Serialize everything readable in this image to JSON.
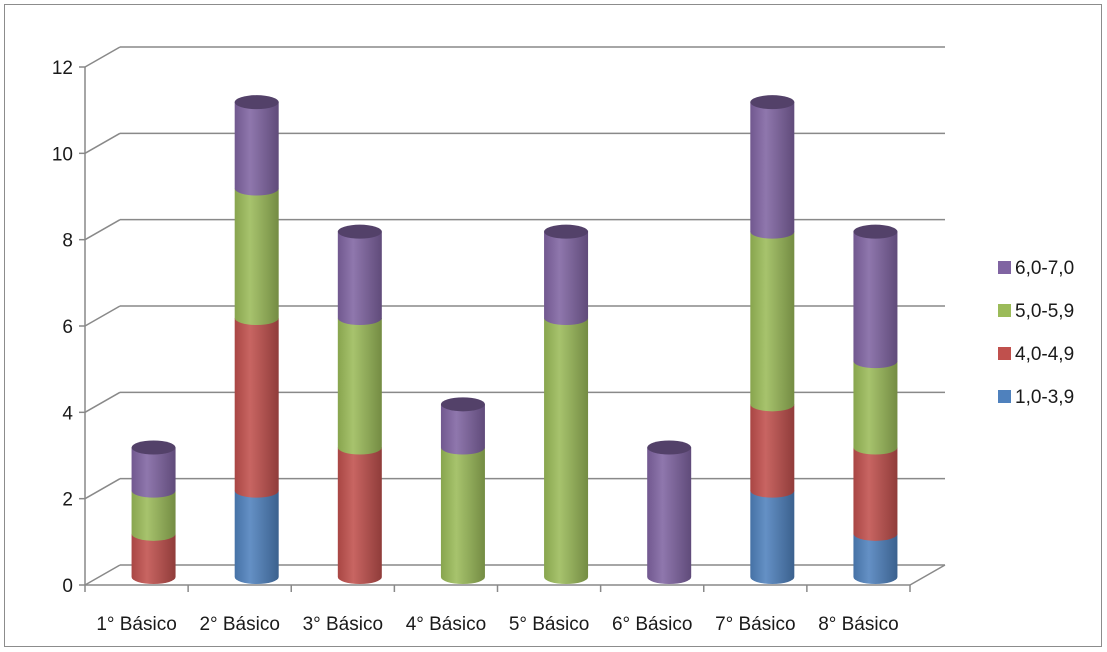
{
  "chart_data": {
    "type": "bar",
    "stacked": true,
    "style": "3d-cylinder",
    "title": "",
    "xlabel": "",
    "ylabel": "",
    "categories": [
      "1° Básico",
      "2° Básico",
      "3° Básico",
      "4° Básico",
      "5° Básico",
      "6° Básico",
      "7° Básico",
      "8° Básico"
    ],
    "series": [
      {
        "name": "1,0-3,9",
        "color": "#4f81bd",
        "values": [
          0,
          2,
          0,
          0,
          0,
          0,
          2,
          1
        ]
      },
      {
        "name": "4,0-4,9",
        "color": "#c0504d",
        "values": [
          1,
          4,
          3,
          0,
          0,
          0,
          2,
          2
        ]
      },
      {
        "name": "5,0-5,9",
        "color": "#9bbb59",
        "values": [
          1,
          3,
          3,
          3,
          6,
          0,
          4,
          2
        ]
      },
      {
        "name": "6,0-7,0",
        "color": "#8064a2",
        "values": [
          1,
          2,
          2,
          1,
          2,
          3,
          3,
          3
        ]
      }
    ],
    "ylim": [
      0,
      12
    ],
    "yticks": [
      0,
      2,
      4,
      6,
      8,
      10,
      12
    ],
    "grid": true,
    "legend_position": "right",
    "legend_order": [
      "6,0-7,0",
      "5,0-5,9",
      "4,0-4,9",
      "1,0-3,9"
    ]
  }
}
